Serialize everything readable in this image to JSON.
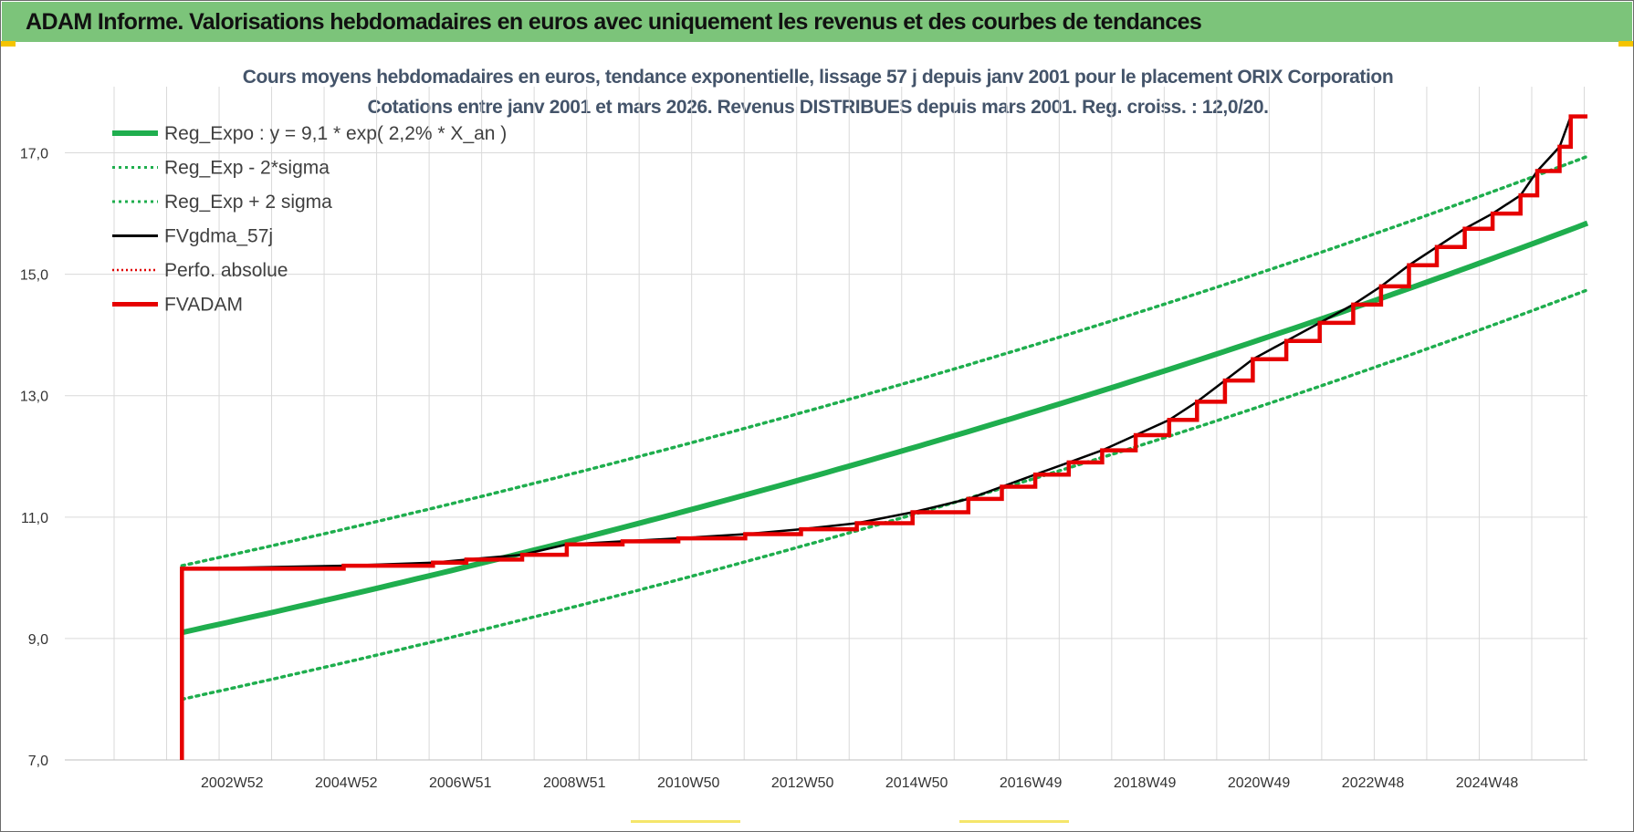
{
  "banner": {
    "title": "ADAM Informe. Valorisations hebdomadaires en euros avec uniquement les revenus et des courbes de tendances",
    "background": "#7cc47a"
  },
  "chart_data": {
    "type": "line",
    "title": "Cours moyens hebdomadaires en euros, tendance exponentielle, lissage 57 j depuis janv 2001 pour le placement ORIX Corporation",
    "subtitle": "Cotations entre janv 2001 et mars 2026. Revenus DISTRIBUES depuis mars 2001. Reg. croiss. : 12,0/20.",
    "xlabel": "",
    "ylabel": "",
    "x_tick_labels": [
      "2002W52",
      "2004W52",
      "2006W51",
      "2008W51",
      "2010W50",
      "2012W50",
      "2014W50",
      "2016W49",
      "2018W49",
      "2020W49",
      "2022W48",
      "2024W48"
    ],
    "y_tick_labels": [
      "7,0",
      "9,0",
      "11,0",
      "13,0",
      "15,0",
      "17,0"
    ],
    "xlim": [
      1999.0,
      2026.3
    ],
    "ylim": [
      7.0,
      18.0
    ],
    "y_ticks": [
      7,
      9,
      11,
      13,
      15,
      17
    ],
    "grid": true,
    "legend_position": "top-left",
    "regression": {
      "a": 9.1,
      "rate": 0.022,
      "x0": 2001.1,
      "x1": 2026.3,
      "sigma_band": 1.1
    },
    "series": [
      {
        "name": "Reg_Expo : y = 9,1 * exp( 2,2% *  X_an )",
        "color": "#1fae4e",
        "style": "solid-thick"
      },
      {
        "name": "Reg_Exp - 2*sigma",
        "color": "#1fae4e",
        "style": "dotted"
      },
      {
        "name": "Reg_Exp + 2 sigma",
        "color": "#1fae4e",
        "style": "dotted"
      },
      {
        "name": "FVgdma_57j",
        "color": "#000000",
        "style": "solid"
      },
      {
        "name": "Perfo. absolue",
        "color": "#e00000",
        "style": "dotted"
      },
      {
        "name": "FVADAM",
        "color": "#e60000",
        "style": "solid-thick",
        "start": [
          2001.1,
          7.0
        ],
        "steps": [
          [
            2001.1,
            10.15
          ],
          [
            2004.0,
            10.2
          ],
          [
            2005.6,
            10.25
          ],
          [
            2006.2,
            10.3
          ],
          [
            2007.2,
            10.38
          ],
          [
            2008.0,
            10.55
          ],
          [
            2009.0,
            10.6
          ],
          [
            2010.0,
            10.65
          ],
          [
            2011.2,
            10.72
          ],
          [
            2012.2,
            10.8
          ],
          [
            2013.2,
            10.9
          ],
          [
            2014.2,
            11.08
          ],
          [
            2015.2,
            11.3
          ],
          [
            2015.8,
            11.5
          ],
          [
            2016.4,
            11.7
          ],
          [
            2017.0,
            11.9
          ],
          [
            2017.6,
            12.1
          ],
          [
            2018.2,
            12.35
          ],
          [
            2018.8,
            12.6
          ],
          [
            2019.3,
            12.9
          ],
          [
            2019.8,
            13.25
          ],
          [
            2020.3,
            13.6
          ],
          [
            2020.9,
            13.9
          ],
          [
            2021.5,
            14.2
          ],
          [
            2022.1,
            14.5
          ],
          [
            2022.6,
            14.8
          ],
          [
            2023.1,
            15.15
          ],
          [
            2023.6,
            15.45
          ],
          [
            2024.1,
            15.75
          ],
          [
            2024.6,
            16.0
          ],
          [
            2025.1,
            16.3
          ],
          [
            2025.4,
            16.7
          ],
          [
            2025.8,
            17.1
          ],
          [
            2026.0,
            17.6
          ],
          [
            2026.3,
            17.6
          ]
        ]
      }
    ]
  }
}
